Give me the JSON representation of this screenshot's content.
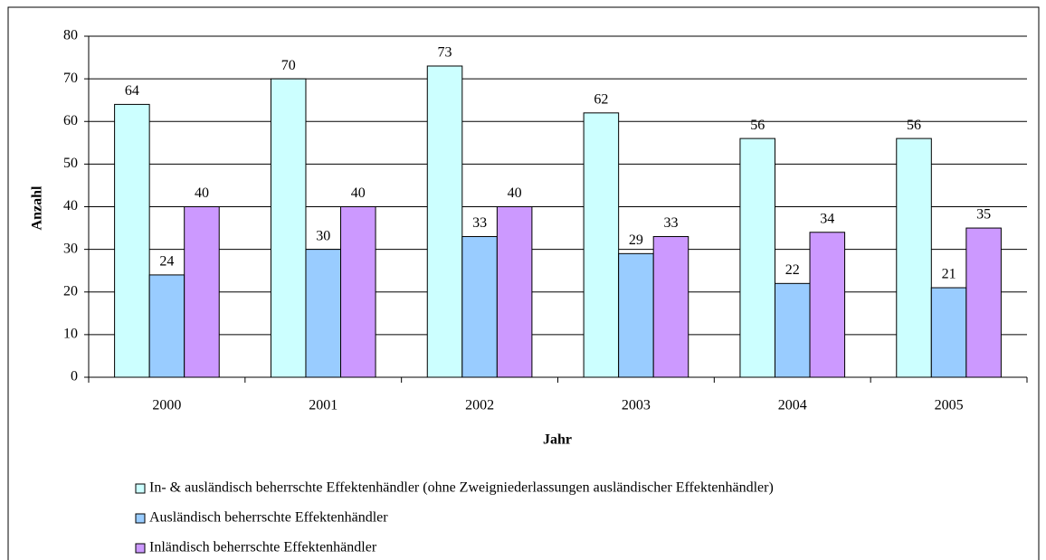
{
  "chart_data": {
    "type": "bar",
    "x_label": "Jahr",
    "y_label": "Anzahl",
    "categories": [
      "2000",
      "2001",
      "2002",
      "2003",
      "2004",
      "2005"
    ],
    "series": [
      {
        "name": "In- & ausländisch beherrschte Effektenhändler (ohne Zweigniederlassungen ausländischer Effektenhändler)",
        "color": "#ccffff",
        "values": [
          64,
          70,
          73,
          62,
          56,
          56
        ]
      },
      {
        "name": "Ausländisch beherrschte Effektenhändler",
        "color": "#99ccff",
        "values": [
          24,
          30,
          33,
          29,
          22,
          21
        ]
      },
      {
        "name": "Inländisch beherrschte Effektenhändler",
        "color": "#cc99ff",
        "values": [
          40,
          40,
          40,
          33,
          34,
          35
        ]
      }
    ],
    "ylim": [
      0,
      80
    ],
    "yticks": [
      0,
      10,
      20,
      30,
      40,
      50,
      60,
      70,
      80
    ],
    "grid": true
  }
}
